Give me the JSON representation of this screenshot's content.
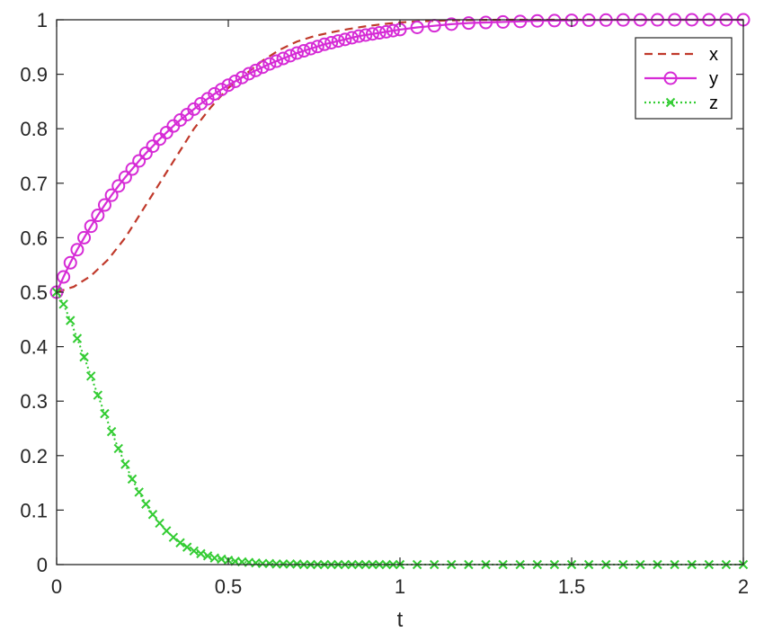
{
  "chart_data": {
    "type": "line",
    "title": "",
    "xlabel": "t",
    "ylabel": "",
    "xlim": [
      0,
      2
    ],
    "ylim": [
      0,
      1
    ],
    "xticks": [
      0,
      0.5,
      1,
      1.5,
      2
    ],
    "xtick_labels": [
      "0",
      "0.5",
      "1",
      "1.5",
      "2"
    ],
    "yticks": [
      0,
      0.1,
      0.2,
      0.3,
      0.4,
      0.5,
      0.6,
      0.7,
      0.8,
      0.9,
      1
    ],
    "ytick_labels": [
      "0",
      "0.1",
      "0.2",
      "0.3",
      "0.4",
      "0.5",
      "0.6",
      "0.7",
      "0.8",
      "0.9",
      "1"
    ],
    "grid": false,
    "legend_position": "top-right",
    "series": [
      {
        "name": "x",
        "color": "#c0392b",
        "line_style": "dashed",
        "marker": "none",
        "x": [
          0,
          0.05,
          0.1,
          0.15,
          0.2,
          0.25,
          0.3,
          0.35,
          0.4,
          0.45,
          0.5,
          0.55,
          0.6,
          0.65,
          0.7,
          0.75,
          0.8,
          0.85,
          0.9,
          0.95,
          1.0,
          1.05,
          1.1,
          1.15,
          1.2,
          1.3,
          1.4,
          1.5,
          1.6,
          1.7,
          1.8,
          1.9,
          2.0
        ],
        "y": [
          0.5,
          0.51,
          0.53,
          0.56,
          0.6,
          0.65,
          0.7,
          0.75,
          0.8,
          0.84,
          0.875,
          0.9,
          0.925,
          0.945,
          0.96,
          0.97,
          0.977,
          0.983,
          0.988,
          0.992,
          0.995,
          0.997,
          0.998,
          0.999,
          0.9995,
          1.0,
          1.0,
          1.0,
          1.0,
          1.0,
          1.0,
          1.0,
          1.0
        ]
      },
      {
        "name": "y",
        "color": "#d62bd6",
        "line_style": "solid",
        "marker": "circle",
        "x": [
          0,
          0.02,
          0.04,
          0.06,
          0.08,
          0.1,
          0.12,
          0.14,
          0.16,
          0.18,
          0.2,
          0.22,
          0.24,
          0.26,
          0.28,
          0.3,
          0.32,
          0.34,
          0.36,
          0.38,
          0.4,
          0.42,
          0.44,
          0.46,
          0.48,
          0.5,
          0.52,
          0.54,
          0.56,
          0.58,
          0.6,
          0.62,
          0.64,
          0.66,
          0.68,
          0.7,
          0.72,
          0.74,
          0.76,
          0.78,
          0.8,
          0.82,
          0.84,
          0.86,
          0.88,
          0.9,
          0.92,
          0.94,
          0.96,
          0.98,
          1.0,
          1.05,
          1.1,
          1.15,
          1.2,
          1.25,
          1.3,
          1.35,
          1.4,
          1.45,
          1.5,
          1.55,
          1.6,
          1.65,
          1.7,
          1.75,
          1.8,
          1.85,
          1.9,
          1.95,
          2.0
        ],
        "y": [
          0.5,
          0.528,
          0.554,
          0.578,
          0.6,
          0.621,
          0.641,
          0.66,
          0.678,
          0.695,
          0.711,
          0.726,
          0.741,
          0.755,
          0.768,
          0.781,
          0.793,
          0.805,
          0.816,
          0.826,
          0.836,
          0.846,
          0.855,
          0.864,
          0.872,
          0.88,
          0.887,
          0.894,
          0.901,
          0.907,
          0.913,
          0.919,
          0.924,
          0.929,
          0.934,
          0.939,
          0.943,
          0.947,
          0.951,
          0.955,
          0.958,
          0.961,
          0.964,
          0.967,
          0.97,
          0.972,
          0.974,
          0.976,
          0.978,
          0.98,
          0.982,
          0.986,
          0.989,
          0.992,
          0.994,
          0.995,
          0.996,
          0.997,
          0.998,
          0.9985,
          0.999,
          0.9993,
          0.9995,
          0.9997,
          0.9998,
          0.9999,
          1.0,
          1.0,
          1.0,
          1.0,
          1.0
        ]
      },
      {
        "name": "z",
        "color": "#33cc33",
        "line_style": "dotted",
        "marker": "x",
        "x": [
          0,
          0.02,
          0.04,
          0.06,
          0.08,
          0.1,
          0.12,
          0.14,
          0.16,
          0.18,
          0.2,
          0.22,
          0.24,
          0.26,
          0.28,
          0.3,
          0.32,
          0.34,
          0.36,
          0.38,
          0.4,
          0.42,
          0.44,
          0.46,
          0.48,
          0.5,
          0.52,
          0.54,
          0.56,
          0.58,
          0.6,
          0.62,
          0.64,
          0.66,
          0.68,
          0.7,
          0.72,
          0.74,
          0.76,
          0.78,
          0.8,
          0.82,
          0.84,
          0.86,
          0.88,
          0.9,
          0.92,
          0.94,
          0.96,
          0.98,
          1.0,
          1.05,
          1.1,
          1.15,
          1.2,
          1.25,
          1.3,
          1.35,
          1.4,
          1.45,
          1.5,
          1.55,
          1.6,
          1.65,
          1.7,
          1.75,
          1.8,
          1.85,
          1.9,
          1.95,
          2.0
        ],
        "y": [
          0.5,
          0.478,
          0.448,
          0.415,
          0.381,
          0.346,
          0.311,
          0.277,
          0.244,
          0.213,
          0.184,
          0.157,
          0.133,
          0.111,
          0.092,
          0.076,
          0.062,
          0.05,
          0.04,
          0.032,
          0.025,
          0.02,
          0.016,
          0.012,
          0.01,
          0.008,
          0.006,
          0.005,
          0.004,
          0.003,
          0.002,
          0.002,
          0.001,
          0.001,
          0.001,
          0.001,
          0,
          0,
          0,
          0,
          0,
          0,
          0,
          0,
          0,
          0,
          0,
          0,
          0,
          0,
          0,
          0,
          0,
          0,
          0,
          0,
          0,
          0,
          0,
          0,
          0,
          0,
          0,
          0,
          0,
          0,
          0,
          0,
          0,
          0,
          0
        ]
      }
    ]
  }
}
